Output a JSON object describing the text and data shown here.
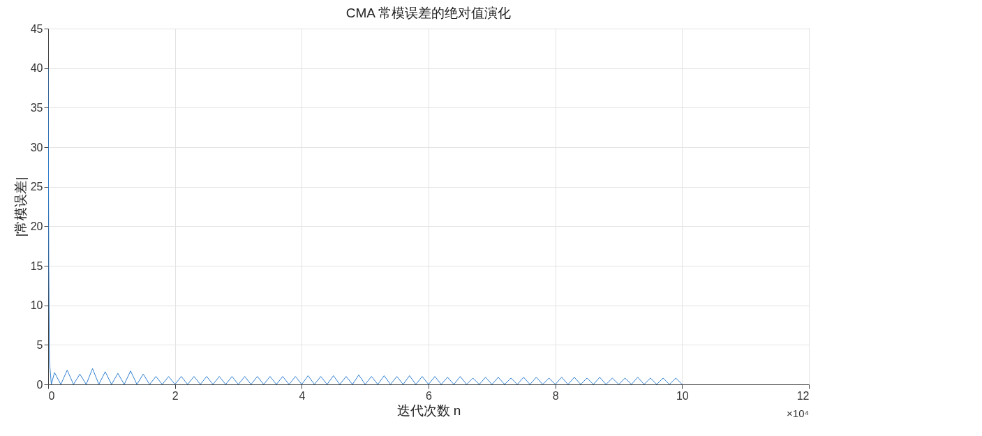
{
  "chart_data": {
    "type": "line",
    "title": "CMA 常模误差的绝对值演化",
    "xlabel": "迭代次数 n",
    "ylabel": "|常模误差|",
    "annotations": [
      "×10⁴"
    ],
    "x": [
      0,
      0.01,
      0.02,
      0.05,
      0.1,
      0.2,
      0.3,
      0.4,
      0.5,
      0.6,
      0.7,
      0.8,
      0.9,
      1.0,
      1.1,
      1.2,
      1.3,
      1.4,
      1.5,
      1.6,
      1.7,
      1.8,
      1.9,
      2.0,
      2.1,
      2.2,
      2.3,
      2.4,
      2.5,
      2.6,
      2.7,
      2.8,
      2.9,
      3.0,
      3.1,
      3.2,
      3.3,
      3.4,
      3.5,
      3.6,
      3.7,
      3.8,
      3.9,
      4.0,
      4.1,
      4.2,
      4.3,
      4.4,
      4.5,
      4.6,
      4.7,
      4.8,
      4.9,
      5.0,
      5.1,
      5.2,
      5.3,
      5.4,
      5.5,
      5.6,
      5.7,
      5.8,
      5.9,
      6.0,
      6.1,
      6.2,
      6.3,
      6.4,
      6.5,
      6.6,
      6.7,
      6.8,
      6.9,
      7.0,
      7.1,
      7.2,
      7.3,
      7.4,
      7.5,
      7.6,
      7.7,
      7.8,
      7.9,
      8.0,
      8.1,
      8.2,
      8.3,
      8.4,
      8.5,
      8.6,
      8.7,
      8.8,
      8.9,
      9.0,
      9.1,
      9.2,
      9.3,
      9.4,
      9.5,
      9.6,
      9.7,
      9.8,
      9.9,
      10.0
    ],
    "series": [
      {
        "color": "#2f7fd0",
        "values": [
          40,
          15,
          3,
          0,
          1.5,
          0,
          1.8,
          0,
          1.3,
          0,
          2.0,
          0,
          1.6,
          0,
          1.4,
          0,
          1.7,
          0,
          1.3,
          0,
          1.0,
          0,
          1.0,
          0,
          1.0,
          0,
          1.0,
          0,
          1.0,
          0,
          1.0,
          0,
          1.0,
          0,
          1.0,
          0,
          1.0,
          0,
          1.0,
          0,
          1.0,
          0,
          1.0,
          0,
          1.1,
          0,
          1.0,
          0,
          1.1,
          0,
          1.0,
          0,
          1.2,
          0,
          1.0,
          0,
          1.1,
          0,
          1.0,
          0,
          1.1,
          0,
          1.0,
          0,
          1.0,
          0,
          0.9,
          0,
          1.0,
          0,
          0.8,
          0,
          0.9,
          0,
          0.9,
          0,
          0.8,
          0,
          0.9,
          0,
          0.9,
          0,
          0.8,
          0,
          0.9,
          0,
          0.9,
          0,
          0.8,
          0,
          0.9,
          0,
          0.8,
          0,
          0.8,
          0,
          0.9,
          0,
          0.8,
          0,
          0.8,
          0,
          0.8,
          0
        ]
      }
    ],
    "xlim": [
      0,
      12
    ],
    "xticks": [
      0,
      2,
      4,
      6,
      8,
      10,
      12
    ],
    "ylim": [
      0,
      45
    ],
    "yticks": [
      0,
      5,
      10,
      15,
      20,
      25,
      30,
      35,
      40,
      45
    ],
    "grid": true,
    "line_style": "solid",
    "marker": "none"
  }
}
